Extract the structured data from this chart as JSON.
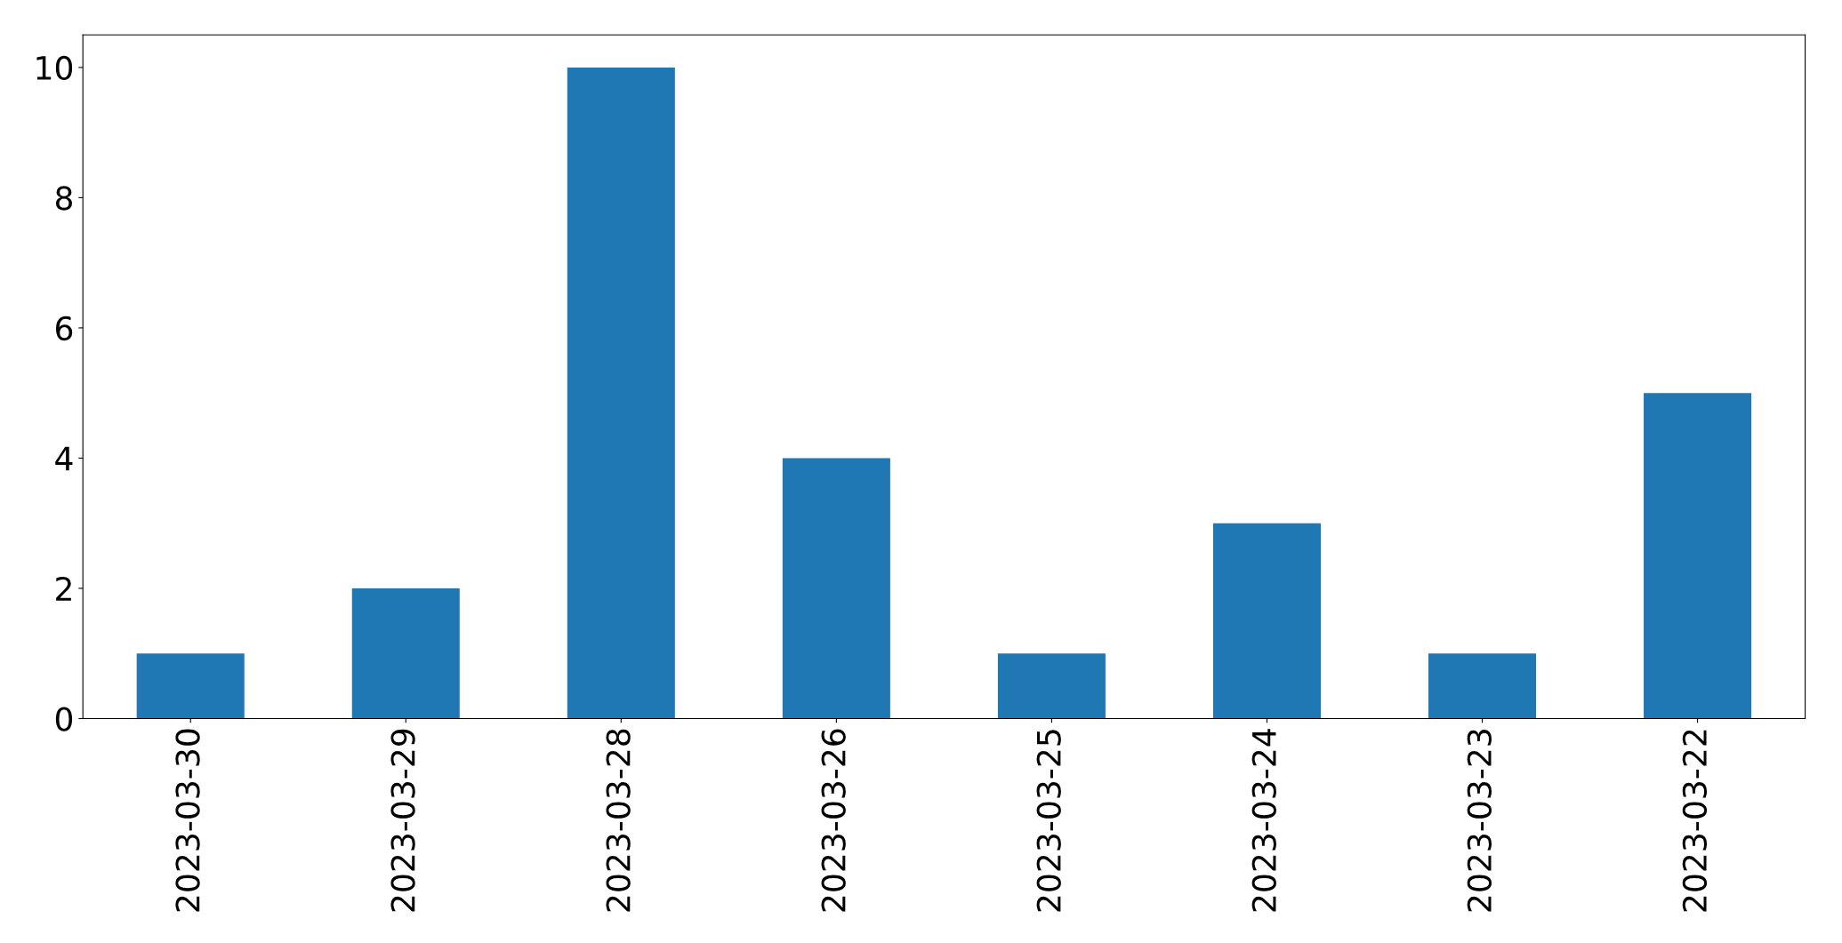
{
  "chart_data": {
    "type": "bar",
    "categories": [
      "2023-03-30",
      "2023-03-29",
      "2023-03-28",
      "2023-03-26",
      "2023-03-25",
      "2023-03-24",
      "2023-03-23",
      "2023-03-22"
    ],
    "values": [
      1,
      2,
      10,
      4,
      1,
      3,
      1,
      5
    ],
    "color": "#1f77b4",
    "ylim": [
      0,
      10.5
    ],
    "yticks": [
      0,
      2,
      4,
      6,
      8,
      10
    ],
    "grid": false,
    "legend": false
  }
}
